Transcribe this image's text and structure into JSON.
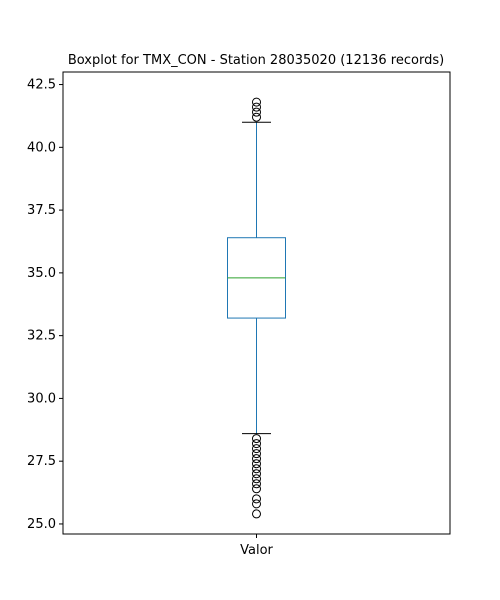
{
  "chart_data": {
    "type": "box",
    "title": "Boxplot for TMX_CON - Station 28035020 (12136 records)",
    "xlabel": "",
    "ylabel": "",
    "categories": [
      "Valor"
    ],
    "ylim": [
      24.6,
      43.0
    ],
    "yticks": [
      25.0,
      27.5,
      30.0,
      32.5,
      35.0,
      37.5,
      40.0,
      42.5
    ],
    "ytick_labels": [
      "25.0",
      "27.5",
      "30.0",
      "32.5",
      "35.0",
      "37.5",
      "40.0",
      "42.5"
    ],
    "grid": false,
    "series": [
      {
        "category": "Valor",
        "whisker_low": 28.6,
        "q1": 33.2,
        "median": 34.8,
        "q3": 36.4,
        "whisker_high": 41.0,
        "outliers_high": [
          41.2,
          41.4,
          41.6,
          41.8
        ],
        "outliers_low": [
          28.4,
          28.2,
          28.0,
          27.8,
          27.6,
          27.4,
          27.2,
          27.0,
          26.8,
          26.6,
          26.4,
          26.0,
          25.8,
          25.4
        ]
      }
    ]
  },
  "colors": {
    "box": "#1f77b4",
    "median": "#2ca02c",
    "whisker_cap": "#000000",
    "outlier": "#000000"
  }
}
